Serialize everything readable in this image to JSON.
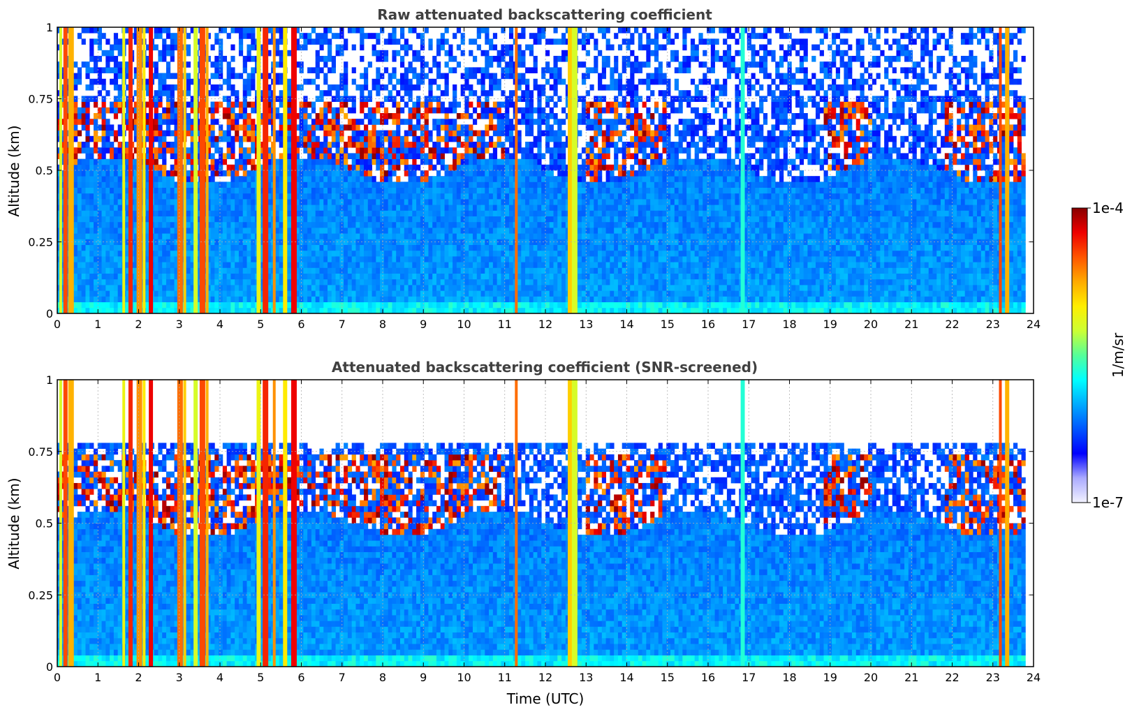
{
  "chart_data": [
    {
      "type": "heatmap",
      "title": "Raw attenuated backscattering coefficient",
      "xlabel": "",
      "ylabel": "Altitude (km)",
      "xlim": [
        0,
        24
      ],
      "ylim": [
        0,
        1
      ],
      "xticks": [
        "0",
        "1",
        "2",
        "3",
        "4",
        "5",
        "6",
        "7",
        "8",
        "9",
        "10",
        "11",
        "12",
        "13",
        "14",
        "15",
        "16",
        "17",
        "18",
        "19",
        "20",
        "21",
        "22",
        "23",
        "24"
      ],
      "yticks": [
        "0",
        "0.25",
        "0.5",
        "0.75",
        "1"
      ],
      "ytick_values": [
        0,
        0.25,
        0.5,
        0.75,
        1
      ],
      "grid": true,
      "data_end_hour": 23.8,
      "boundary_layer_top_km": [
        0.45,
        0.55
      ],
      "cloud_layer_km": [
        0.5,
        0.75
      ],
      "screened": false
    },
    {
      "type": "heatmap",
      "title": "Attenuated backscattering coefficient (SNR-screened)",
      "xlabel": "Time (UTC)",
      "ylabel": "Altitude (km)",
      "xlim": [
        0,
        24
      ],
      "ylim": [
        0,
        1
      ],
      "xticks": [
        "0",
        "1",
        "2",
        "3",
        "4",
        "5",
        "6",
        "7",
        "8",
        "9",
        "10",
        "11",
        "12",
        "13",
        "14",
        "15",
        "16",
        "17",
        "18",
        "19",
        "20",
        "21",
        "22",
        "23",
        "24"
      ],
      "yticks": [
        "0",
        "0.25",
        "0.5",
        "0.75",
        "1"
      ],
      "ytick_values": [
        0,
        0.25,
        0.5,
        0.75,
        1
      ],
      "grid": true,
      "data_end_hour": 23.8,
      "boundary_layer_top_km": [
        0.45,
        0.55
      ],
      "cloud_layer_km": [
        0.5,
        0.75
      ],
      "screened": true
    }
  ],
  "colorbar": {
    "label": "1/m/sr",
    "max_label": "1e-4",
    "min_label": "1e-7",
    "colors": [
      "#f2f2ff",
      "#aaaaff",
      "#0000ff",
      "#0055ff",
      "#00aaff",
      "#00ffff",
      "#55ff99",
      "#ccff33",
      "#ffee00",
      "#ffaa00",
      "#ff5500",
      "#ee0000",
      "#880000"
    ]
  }
}
